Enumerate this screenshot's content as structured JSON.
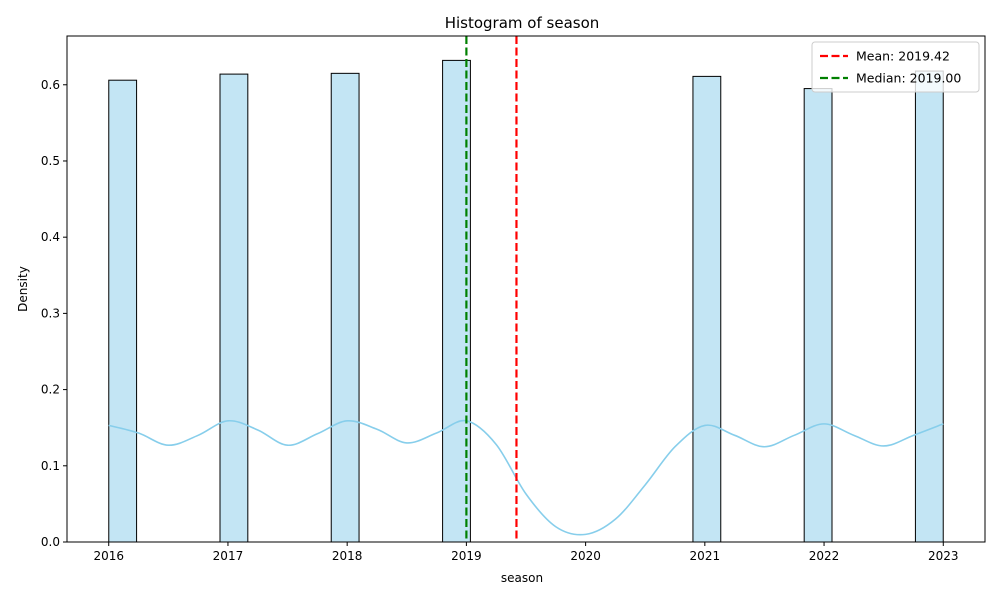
{
  "chart_data": {
    "type": "bar",
    "title": "Histogram of season",
    "xlabel": "season",
    "ylabel": "Density",
    "xlim": [
      2015.65,
      2023.35
    ],
    "ylim": [
      0,
      0.664
    ],
    "xticks": [
      2016,
      2017,
      2018,
      2019,
      2020,
      2021,
      2022,
      2023
    ],
    "yticks": [
      0.0,
      0.1,
      0.2,
      0.3,
      0.4,
      0.5,
      0.6
    ],
    "bin_width": 0.2333,
    "bars": [
      {
        "x": 2016.117,
        "value": 0.606
      },
      {
        "x": 2017.05,
        "value": 0.614
      },
      {
        "x": 2017.983,
        "value": 0.615
      },
      {
        "x": 2018.917,
        "value": 0.632
      },
      {
        "x": 2021.017,
        "value": 0.611
      },
      {
        "x": 2021.95,
        "value": 0.595
      },
      {
        "x": 2022.883,
        "value": 0.618
      }
    ],
    "kde": {
      "x": [
        2016.0,
        2016.25,
        2016.5,
        2016.75,
        2017.0,
        2017.25,
        2017.5,
        2017.75,
        2018.0,
        2018.25,
        2018.5,
        2018.75,
        2019.0,
        2019.25,
        2019.5,
        2019.75,
        2020.0,
        2020.25,
        2020.5,
        2020.75,
        2021.0,
        2021.25,
        2021.5,
        2021.75,
        2022.0,
        2022.25,
        2022.5,
        2022.75,
        2023.0
      ],
      "y": [
        0.153,
        0.143,
        0.127,
        0.14,
        0.159,
        0.147,
        0.127,
        0.142,
        0.159,
        0.148,
        0.13,
        0.143,
        0.159,
        0.128,
        0.063,
        0.02,
        0.01,
        0.03,
        0.075,
        0.125,
        0.153,
        0.14,
        0.125,
        0.14,
        0.155,
        0.14,
        0.126,
        0.14,
        0.155
      ]
    },
    "lines": [
      {
        "name": "Mean: 2019.42",
        "x": 2019.42,
        "color": "#ff0000"
      },
      {
        "name": "Median: 2019.00",
        "x": 2019.0,
        "color": "#008000"
      }
    ],
    "colors": {
      "bar_fill": "#c3e5f4",
      "bar_edge": "#000000",
      "kde": "#87ceeb"
    },
    "legend_position": "top-right",
    "grid": false
  }
}
